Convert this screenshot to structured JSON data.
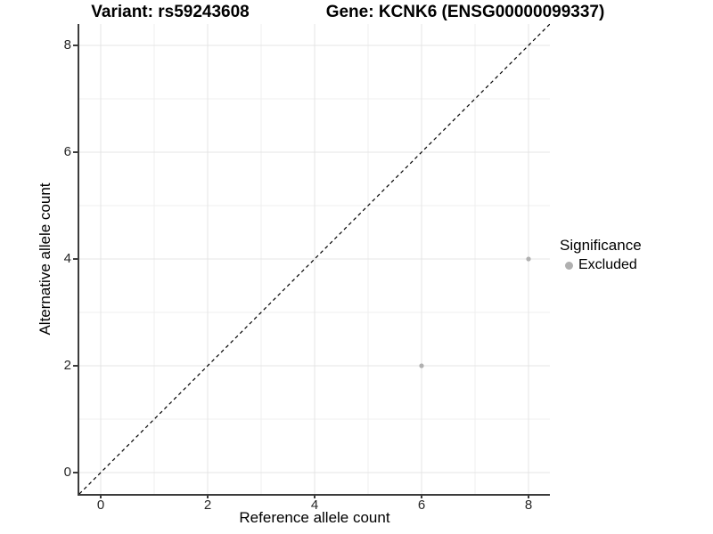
{
  "chart_data": {
    "type": "scatter",
    "titles": {
      "left": "Variant: rs59243608",
      "right": "Gene: KCNK6 (ENSG00000099337)"
    },
    "xlabel": "Reference allele count",
    "ylabel": "Alternative allele count",
    "xlim": [
      -0.4,
      8.4
    ],
    "ylim": [
      -0.4,
      8.4
    ],
    "x_ticks": [
      0,
      2,
      4,
      6,
      8
    ],
    "y_ticks": [
      0,
      2,
      4,
      6,
      8
    ],
    "x_minor_gridlines": [
      1,
      3,
      5,
      7
    ],
    "y_minor_gridlines": [
      1,
      3,
      5,
      7
    ],
    "grid": "major and minor gridlines on white background",
    "identity_line": {
      "slope": 1,
      "intercept": 0,
      "style": "dashed",
      "color": "#000000"
    },
    "series": [
      {
        "name": "Excluded",
        "color": "#b0b0b0",
        "points": [
          {
            "x": 6,
            "y": 2
          },
          {
            "x": 8,
            "y": 4
          }
        ]
      }
    ],
    "legend": {
      "title": "Significance",
      "position": "right",
      "items": [
        {
          "label": "Excluded",
          "color": "#b0b0b0"
        }
      ]
    }
  },
  "style": {
    "grid_major_color": "#e4e4e4",
    "grid_minor_color": "#efefef",
    "axis_color": "#3c3c3c",
    "tick_label_color": "#262626"
  }
}
